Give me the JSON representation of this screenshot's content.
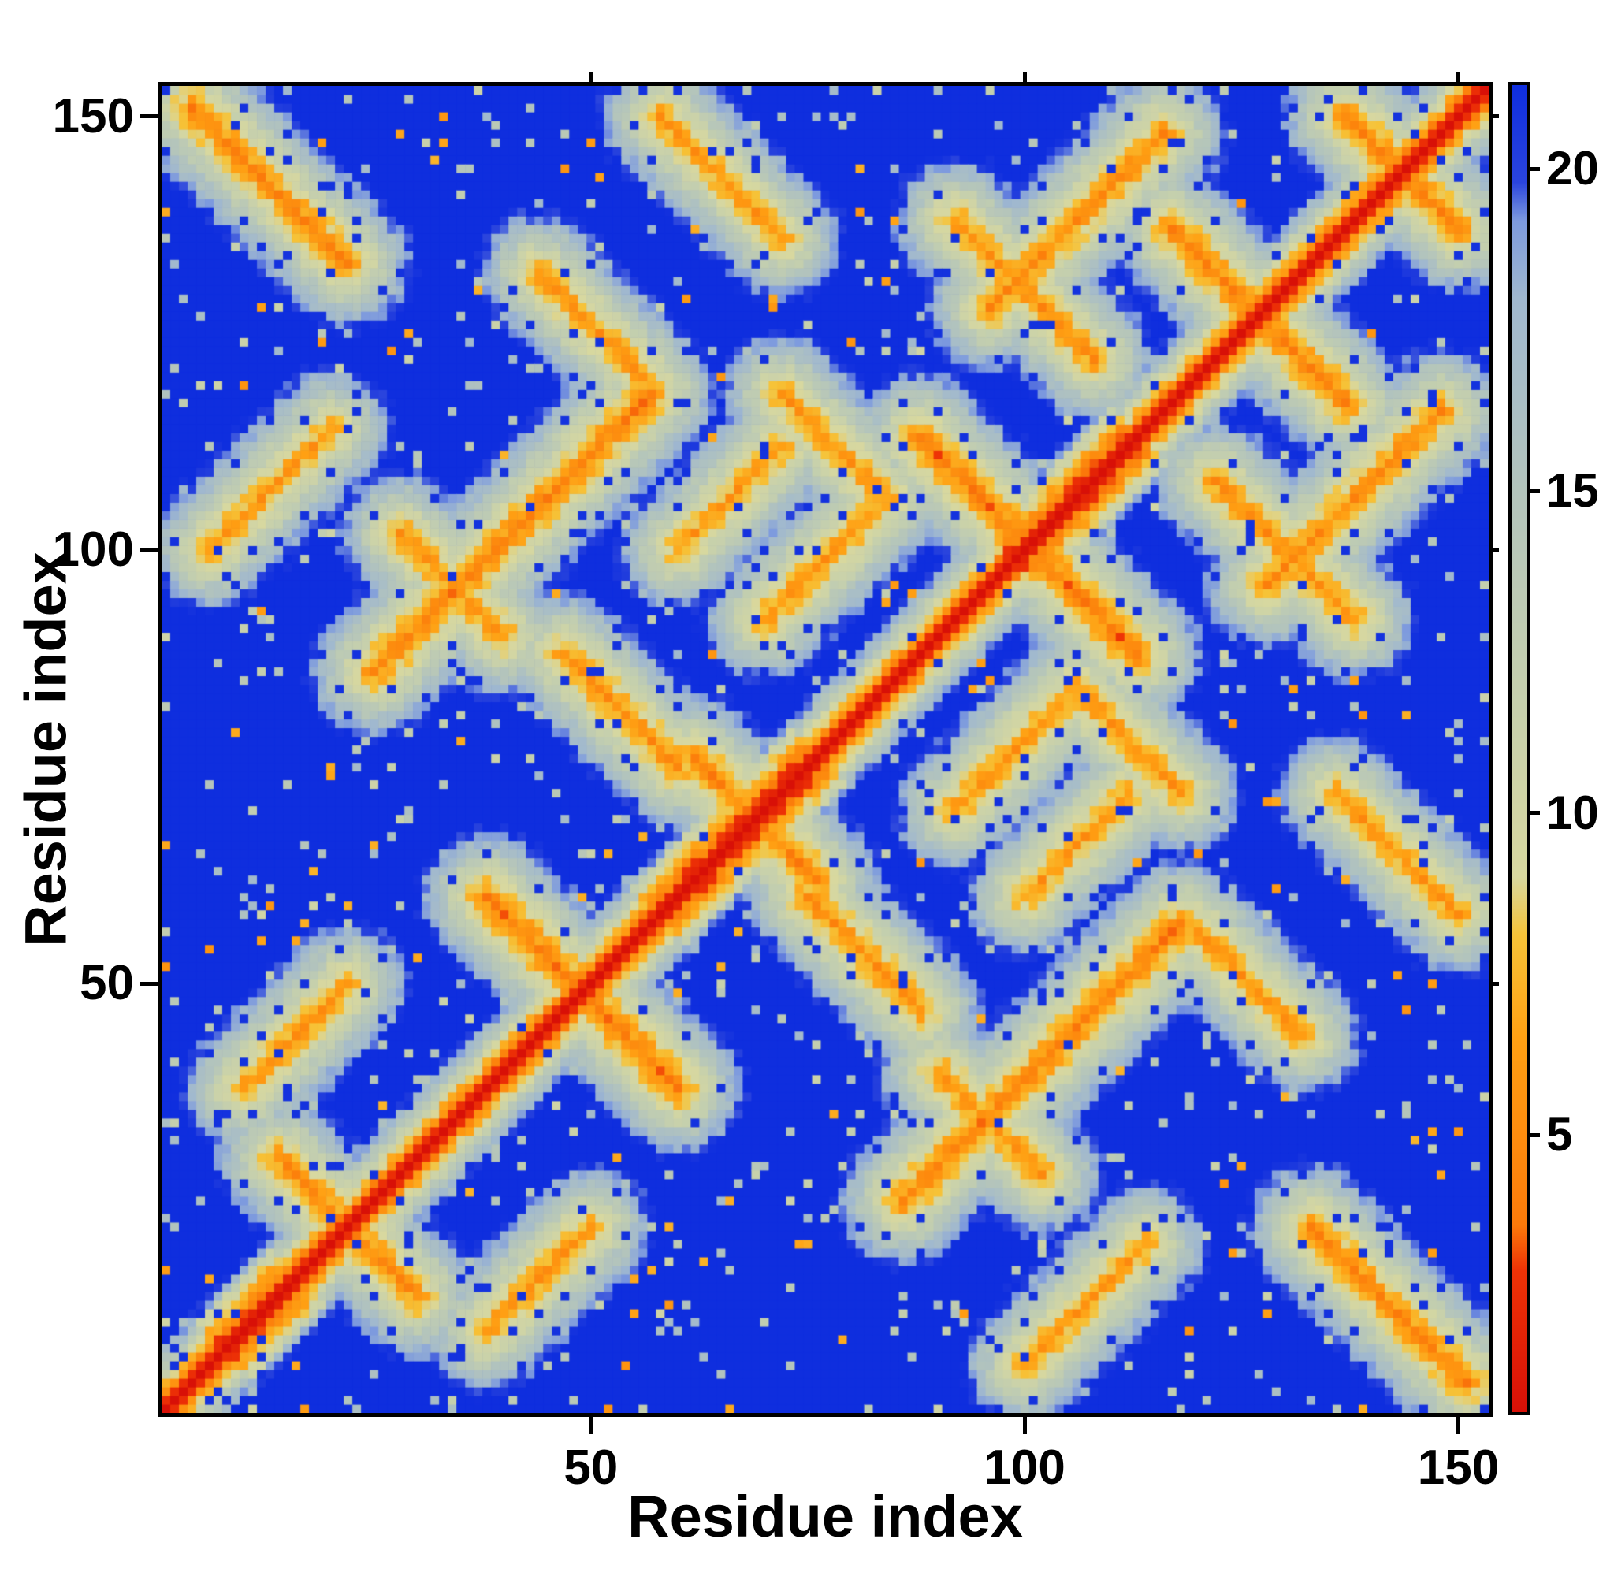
{
  "chart_data": {
    "type": "heatmap",
    "title": "",
    "xlabel": "Residue index",
    "ylabel": "Residue index",
    "n_residues": 153,
    "x_ticks": [
      50,
      100,
      150
    ],
    "y_ticks": [
      50,
      100,
      150
    ],
    "value_range": [
      0.7,
      21.3
    ],
    "colorbar_ticks": [
      5,
      10,
      15,
      20
    ],
    "legend_position": "right-colorbar",
    "grid": false,
    "colormap_stops": [
      {
        "v": 0.7,
        "c": "#d81007"
      },
      {
        "v": 2.9,
        "c": "#ee3306"
      },
      {
        "v": 3.6,
        "c": "#fb7a0a"
      },
      {
        "v": 6.5,
        "c": "#ffa013"
      },
      {
        "v": 8.1,
        "c": "#f6c338"
      },
      {
        "v": 9.0,
        "c": "#d8d89f"
      },
      {
        "v": 12.0,
        "c": "#c4cfae"
      },
      {
        "v": 15.0,
        "c": "#b3c4bc"
      },
      {
        "v": 18.0,
        "c": "#a0b8cf"
      },
      {
        "v": 19.2,
        "c": "#7d9ade"
      },
      {
        "v": 19.8,
        "c": "#2a44dd"
      },
      {
        "v": 21.3,
        "c": "#0f2ede"
      }
    ],
    "diagonal": {
      "slope": 2.6,
      "helix_slope": 1.9,
      "helix_regions": [
        [
          8,
          16
        ],
        [
          58,
          76
        ],
        [
          99,
          113
        ]
      ]
    },
    "halo_slope": 2.1,
    "noise_amplitude": 1.3,
    "seed": 987241,
    "contact_features": [
      [
        38,
        60,
        60,
        38,
        4.3
      ],
      [
        62,
        76,
        76,
        62,
        4.6
      ],
      [
        88,
        113,
        113,
        88,
        4.2
      ],
      [
        117,
        137,
        137,
        117,
        4.5
      ],
      [
        14,
        30,
        30,
        14,
        5.0
      ],
      [
        137,
        150,
        150,
        137,
        4.8
      ],
      [
        4,
        151,
        22,
        133,
        4.8
      ],
      [
        25,
        86,
        57,
        118,
        4.6
      ],
      [
        6,
        100,
        20,
        114,
        5.8
      ],
      [
        28,
        102,
        40,
        90,
        5.4
      ],
      [
        96,
        128,
        116,
        148,
        5.0
      ],
      [
        58,
        150,
        72,
        136,
        5.6
      ],
      [
        10,
        38,
        22,
        50,
        5.5
      ],
      [
        47,
        88,
        60,
        75,
        5.0
      ],
      [
        44,
        132,
        56,
        120,
        5.6
      ],
      [
        70,
        92,
        82,
        104,
        5.5
      ],
      [
        60,
        100,
        72,
        112,
        5.8
      ],
      [
        92,
        138,
        108,
        122,
        5.2
      ],
      [
        72,
        118,
        84,
        106,
        5.6
      ]
    ]
  }
}
